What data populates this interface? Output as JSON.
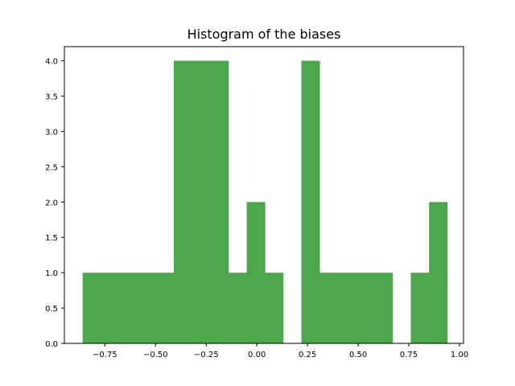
{
  "chart_data": {
    "type": "bar",
    "title": "Histogram of the biases",
    "xlabel": "",
    "ylabel": "",
    "bin_edges": [
      -0.86,
      -0.77,
      -0.68,
      -0.59,
      -0.5,
      -0.41,
      -0.32,
      -0.23,
      -0.14,
      -0.05,
      0.04,
      0.13,
      0.22,
      0.31,
      0.4,
      0.49,
      0.58,
      0.67,
      0.76,
      0.85,
      0.94
    ],
    "values": [
      1,
      1,
      1,
      1,
      1,
      4,
      4,
      4,
      1,
      2,
      1,
      0,
      4,
      1,
      1,
      1,
      1,
      0,
      1,
      2
    ],
    "xlim": [
      -0.95,
      1.02
    ],
    "ylim": [
      0,
      4.2
    ],
    "xticks": [
      -0.75,
      -0.5,
      -0.25,
      0.0,
      0.25,
      0.5,
      0.75,
      1.0
    ],
    "xtick_labels": [
      "−0.75",
      "−0.50",
      "−0.25",
      "0.00",
      "0.25",
      "0.50",
      "0.75",
      "1.00"
    ],
    "yticks": [
      0.0,
      0.5,
      1.0,
      1.5,
      2.0,
      2.5,
      3.0,
      3.5,
      4.0
    ],
    "ytick_labels": [
      "0.0",
      "0.5",
      "1.0",
      "1.5",
      "2.0",
      "2.5",
      "3.0",
      "3.5",
      "4.0"
    ],
    "bar_color": "#4CA64C",
    "grid": false,
    "legend": "none"
  }
}
